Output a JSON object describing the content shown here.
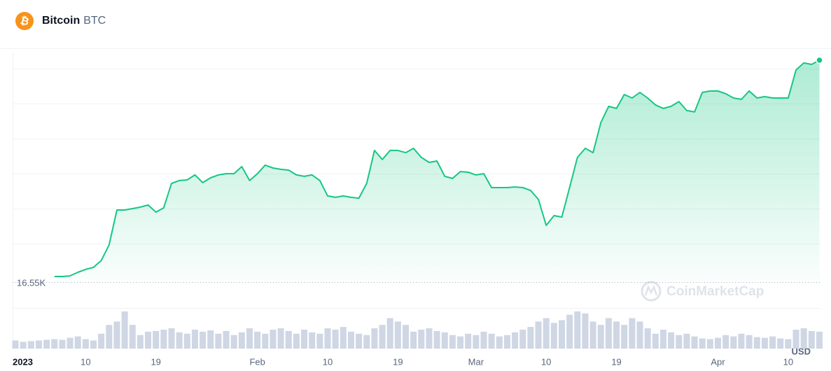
{
  "header": {
    "icon_symbol": "₿",
    "name": "Bitcoin",
    "symbol": "BTC"
  },
  "chart_data": {
    "type": "area",
    "color": "#16c784",
    "categories": [
      "2023",
      null,
      null,
      null,
      null,
      null,
      null,
      null,
      null,
      "10",
      null,
      null,
      null,
      null,
      null,
      null,
      null,
      null,
      "19",
      null,
      null,
      null,
      null,
      null,
      null,
      null,
      null,
      null,
      null,
      null,
      null,
      "Feb",
      null,
      null,
      null,
      null,
      null,
      null,
      null,
      null,
      "10",
      null,
      null,
      null,
      null,
      null,
      null,
      null,
      null,
      "19",
      null,
      null,
      null,
      null,
      null,
      null,
      null,
      null,
      null,
      "Mar",
      null,
      null,
      null,
      null,
      null,
      null,
      null,
      null,
      "10",
      null,
      null,
      null,
      null,
      null,
      null,
      null,
      null,
      "19",
      null,
      null,
      null,
      null,
      null,
      null,
      null,
      null,
      null,
      null,
      null,
      null,
      "Apr",
      null,
      null,
      null,
      null,
      null,
      null,
      null,
      null,
      "10",
      null,
      null,
      null,
      null
    ],
    "values": [
      null,
      null,
      null,
      null,
      null,
      16900,
      16900,
      16940,
      17160,
      17340,
      17470,
      17900,
      18870,
      21050,
      21050,
      21140,
      21230,
      21360,
      20920,
      21180,
      22710,
      22890,
      22930,
      23240,
      22760,
      23060,
      23240,
      23320,
      23320,
      23760,
      22890,
      23320,
      23850,
      23670,
      23590,
      23540,
      23240,
      23150,
      23240,
      22890,
      21930,
      21840,
      21930,
      21840,
      21790,
      22710,
      24770,
      24200,
      24770,
      24770,
      24630,
      24900,
      24330,
      24020,
      24110,
      23150,
      23020,
      23450,
      23410,
      23240,
      23320,
      22450,
      22450,
      22450,
      22490,
      22450,
      22270,
      21710,
      20090,
      20700,
      20610,
      22450,
      24330,
      24900,
      24630,
      26510,
      27520,
      27390,
      28260,
      28040,
      28390,
      28040,
      27610,
      27390,
      27520,
      27820,
      27260,
      27170,
      28390,
      28480,
      28480,
      28310,
      28040,
      27960,
      28480,
      28040,
      28130,
      28040,
      28040,
      28040,
      29790,
      30230,
      30140,
      30400
    ],
    "volume": [
      12,
      10,
      11,
      12,
      13,
      14,
      13,
      16,
      18,
      14,
      12,
      22,
      35,
      40,
      55,
      35,
      20,
      25,
      26,
      28,
      30,
      24,
      22,
      28,
      25,
      27,
      22,
      26,
      20,
      24,
      30,
      25,
      22,
      28,
      30,
      26,
      22,
      28,
      24,
      22,
      30,
      28,
      32,
      25,
      22,
      20,
      30,
      35,
      45,
      40,
      35,
      25,
      28,
      30,
      26,
      24,
      20,
      18,
      22,
      20,
      25,
      22,
      18,
      20,
      24,
      28,
      32,
      40,
      45,
      38,
      42,
      50,
      55,
      52,
      40,
      35,
      45,
      40,
      35,
      45,
      40,
      30,
      22,
      28,
      24,
      20,
      22,
      18,
      15,
      14,
      16,
      20,
      18,
      22,
      20,
      17,
      16,
      18,
      15,
      14,
      28,
      30,
      26,
      25
    ],
    "volume_color": "#cfd6e4",
    "volume_ylim": [
      0,
      60
    ],
    "ylim": [
      16550,
      31100
    ],
    "yticks": [
      {
        "value": 16550,
        "label": "16.55K"
      }
    ],
    "currency_label": "USD",
    "watermark": "CoinMarketCap"
  }
}
